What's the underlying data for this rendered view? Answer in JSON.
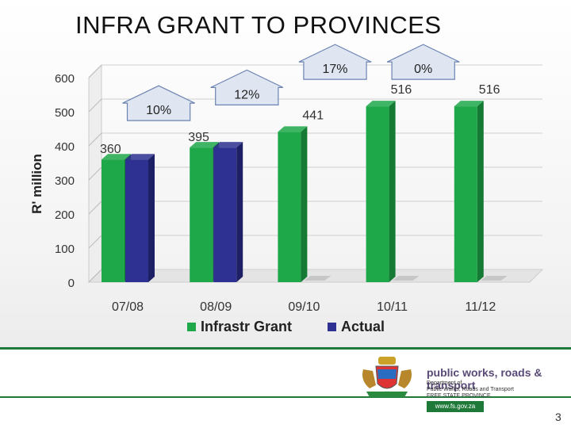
{
  "title": "INFRA GRANT TO PROVINCES",
  "chart_data": {
    "type": "bar",
    "title": "",
    "xlabel": "",
    "ylabel": "R' million",
    "ylim": [
      0,
      600
    ],
    "yticks": [
      0,
      100,
      200,
      300,
      400,
      500,
      600
    ],
    "categories": [
      "07/08",
      "08/09",
      "09/10",
      "10/11",
      "11/12"
    ],
    "series": [
      {
        "name": "Infrastr Grant",
        "color": "#1fa84a",
        "values": [
          360,
          395,
          441,
          516,
          516
        ]
      },
      {
        "name": "Actual",
        "color": "#2e3191",
        "values": [
          360,
          395,
          null,
          null,
          null
        ]
      }
    ],
    "data_labels": [
      "360",
      "395",
      "441",
      "516",
      "516"
    ],
    "growth_arrows": [
      {
        "label": "10%",
        "from": "07/08",
        "to": "08/09"
      },
      {
        "label": "12%",
        "from": "08/09",
        "to": "09/10"
      },
      {
        "label": "17%",
        "from": "09/10",
        "to": "10/11"
      },
      {
        "label": "0%",
        "from": "10/11",
        "to": "11/12"
      }
    ],
    "legend_position": "bottom",
    "grid": true
  },
  "footer": {
    "org_name": "public works, roads & transport",
    "dept_lines": [
      "Department of",
      "Public Works, Roads and Transport",
      "FREE STATE PROVINCE"
    ],
    "website": "www.fs.gov.za",
    "page_number": "3"
  }
}
